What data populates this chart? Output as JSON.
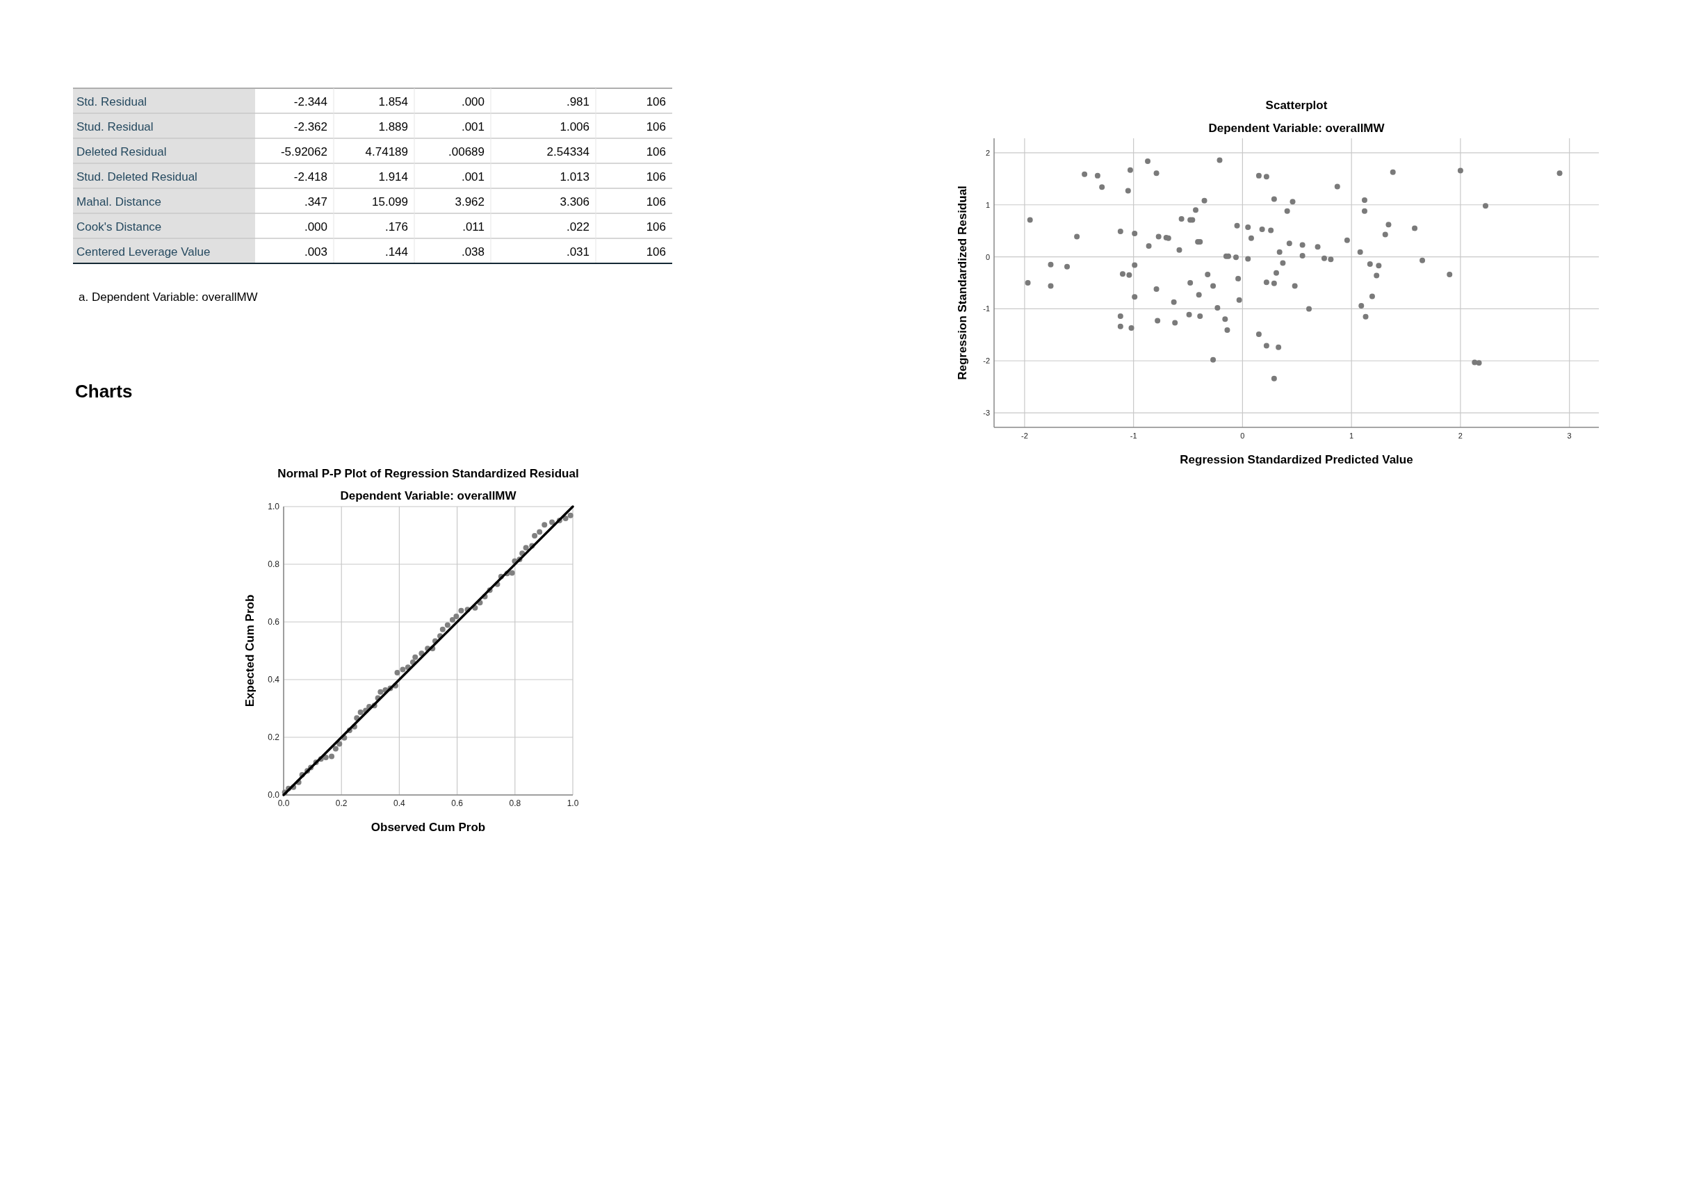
{
  "chart_data": [
    {
      "type": "other",
      "categories": [
        "Std. Residual",
        "Stud. Residual",
        "Deleted Residual",
        "Stud. Deleted Residual",
        "Mahal. Distance",
        "Cook's Distance",
        "Centered Leverage Value"
      ],
      "cell_labels": [
        [
          "-2.344",
          "1.854",
          ".000",
          ".981",
          "106"
        ],
        [
          "-2.362",
          "1.889",
          ".001",
          "1.006",
          "106"
        ],
        [
          "-5.92062",
          "4.74189",
          ".00689",
          "2.54334",
          "106"
        ],
        [
          "-2.418",
          "1.914",
          ".001",
          "1.013",
          "106"
        ],
        [
          ".347",
          "15.099",
          "3.962",
          "3.306",
          "106"
        ],
        [
          ".000",
          ".176",
          ".011",
          ".022",
          "106"
        ],
        [
          ".003",
          ".144",
          ".038",
          ".031",
          "106"
        ]
      ],
      "annotations": [
        "a. Dependent Variable: overallMW",
        "Charts"
      ]
    },
    {
      "type": "scatter",
      "title": "Normal P-P Plot of Regression Standardized Residual",
      "subtitle": "Dependent Variable: overallMW",
      "xlabel": "Observed Cum Prob",
      "ylabel": "Expected Cum Prob",
      "xlim": [
        0,
        1
      ],
      "ylim": [
        0,
        1
      ],
      "xticks": [
        {
          "value": 0,
          "label": "0.0"
        },
        {
          "value": 0.2,
          "label": "0.2"
        },
        {
          "value": 0.4,
          "label": "0.4"
        },
        {
          "value": 0.6,
          "label": "0.6"
        },
        {
          "value": 0.8,
          "label": "0.8"
        },
        {
          "value": 1,
          "label": "1.0"
        }
      ],
      "yticks": [
        {
          "value": 0,
          "label": "0.0"
        },
        {
          "value": 0.2,
          "label": "0.2"
        },
        {
          "value": 0.4,
          "label": "0.4"
        },
        {
          "value": 0.6,
          "label": "0.6"
        },
        {
          "value": 0.8,
          "label": "0.8"
        },
        {
          "value": 1,
          "label": "1.0"
        }
      ],
      "grid": true,
      "series": [
        {
          "type": "scatter",
          "marker": "circle",
          "color": "#808080",
          "x": [
            0.004,
            0.017,
            0.034,
            0.052,
            0.064,
            0.082,
            0.094,
            0.112,
            0.129,
            0.146,
            0.166,
            0.18,
            0.193,
            0.21,
            0.228,
            0.245,
            0.253,
            0.266,
            0.284,
            0.296,
            0.314,
            0.326,
            0.335,
            0.352,
            0.369,
            0.387,
            0.393,
            0.412,
            0.43,
            0.447,
            0.455,
            0.477,
            0.498,
            0.515,
            0.524,
            0.541,
            0.55,
            0.567,
            0.584,
            0.597,
            0.614,
            0.636,
            0.662,
            0.679,
            0.696,
            0.713,
            0.739,
            0.752,
            0.773,
            0.79,
            0.799,
            0.816,
            0.825,
            0.838,
            0.859,
            0.868,
            0.885,
            0.902,
            0.928,
            0.954,
            0.975,
            0.992
          ],
          "values": [
            0.009,
            0.022,
            0.027,
            0.044,
            0.07,
            0.084,
            0.095,
            0.113,
            0.125,
            0.13,
            0.134,
            0.16,
            0.177,
            0.198,
            0.224,
            0.237,
            0.267,
            0.287,
            0.293,
            0.306,
            0.31,
            0.336,
            0.357,
            0.364,
            0.37,
            0.379,
            0.424,
            0.435,
            0.443,
            0.46,
            0.478,
            0.491,
            0.508,
            0.508,
            0.534,
            0.551,
            0.574,
            0.589,
            0.607,
            0.619,
            0.639,
            0.643,
            0.649,
            0.667,
            0.688,
            0.71,
            0.731,
            0.757,
            0.768,
            0.77,
            0.811,
            0.817,
            0.838,
            0.857,
            0.864,
            0.899,
            0.912,
            0.937,
            0.946,
            0.952,
            0.959,
            0.969
          ]
        },
        {
          "type": "line",
          "marker": "none",
          "color": "#000000",
          "x": [
            0,
            1
          ],
          "values": [
            0,
            1
          ]
        }
      ]
    },
    {
      "type": "scatter",
      "title": "Scatterplot",
      "subtitle": "Dependent Variable: overallMW",
      "xlabel": "Regression Standardized Predicted Value",
      "ylabel": "Regression Standardized Residual",
      "xlim": [
        -2.28,
        3.27
      ],
      "ylim": [
        -3.28,
        2.28
      ],
      "xticks": [
        -2,
        -1,
        0,
        1,
        2,
        3
      ],
      "yticks": [
        -3,
        -2,
        -1,
        0,
        1,
        2
      ],
      "grid": true,
      "marker": "circle",
      "series": [
        {
          "type": "scatter",
          "color": "#7a7a7a",
          "x": [
            -1.95,
            -1.97,
            -1.76,
            -1.76,
            -1.61,
            -1.52,
            -1.45,
            -1.33,
            -1.29,
            -1.12,
            -1.12,
            -1.12,
            -1.1,
            -1.05,
            -1.04,
            -1.03,
            -1.02,
            -0.99,
            -0.99,
            -0.99,
            -0.87,
            -0.86,
            -0.79,
            -0.79,
            -0.78,
            -0.77,
            -0.7,
            -0.68,
            -0.63,
            -0.62,
            -0.58,
            -0.56,
            -0.49,
            -0.48,
            -0.48,
            -0.46,
            -0.43,
            -0.41,
            -0.4,
            -0.39,
            -0.39,
            -0.35,
            -0.32,
            -0.27,
            -0.27,
            -0.23,
            -0.21,
            -0.16,
            -0.15,
            -0.14,
            -0.13,
            -0.06,
            -0.05,
            -0.04,
            -0.03,
            0.05,
            0.05,
            0.08,
            0.15,
            0.15,
            0.18,
            0.22,
            0.22,
            0.22,
            0.26,
            0.29,
            0.29,
            0.29,
            0.31,
            0.33,
            0.34,
            0.37,
            0.41,
            0.43,
            0.46,
            0.48,
            0.55,
            0.55,
            0.61,
            0.69,
            0.75,
            0.81,
            0.87,
            0.96,
            1.08,
            1.09,
            1.12,
            1.12,
            1.13,
            1.17,
            1.19,
            1.23,
            1.25,
            1.31,
            1.34,
            1.38,
            1.58,
            1.65,
            1.9,
            2.0,
            2.13,
            2.17,
            2.23,
            2.91
          ],
          "values": [
            0.71,
            -0.5,
            -0.15,
            -0.56,
            -0.19,
            0.39,
            1.59,
            1.56,
            1.34,
            0.49,
            -1.14,
            -1.34,
            -0.33,
            1.27,
            -0.35,
            1.67,
            -1.37,
            -0.16,
            -0.77,
            0.45,
            1.84,
            0.21,
            1.61,
            -0.62,
            -1.23,
            0.39,
            0.37,
            0.36,
            -0.87,
            -1.27,
            0.13,
            0.73,
            -1.11,
            0.71,
            -0.5,
            0.71,
            0.9,
            0.29,
            -0.73,
            0.29,
            -1.14,
            1.08,
            -0.34,
            -0.56,
            -1.98,
            -0.98,
            1.86,
            -1.2,
            0.01,
            -1.41,
            0.01,
            -0.01,
            0.6,
            -0.42,
            -0.83,
            0.57,
            -0.04,
            0.36,
            -1.49,
            1.56,
            0.53,
            1.54,
            -1.71,
            -0.49,
            0.51,
            1.11,
            -0.51,
            -2.34,
            -0.31,
            -1.74,
            0.09,
            -0.12,
            0.88,
            0.26,
            1.06,
            -0.56,
            0.23,
            0.02,
            -1.0,
            0.19,
            -0.03,
            -0.05,
            1.35,
            0.32,
            0.09,
            -0.94,
            0.88,
            1.09,
            -1.15,
            -0.14,
            -0.76,
            -0.36,
            -0.17,
            0.43,
            0.62,
            1.63,
            0.55,
            -0.07,
            -0.34,
            1.66,
            -2.03,
            -2.04,
            0.98,
            1.61
          ]
        }
      ]
    }
  ]
}
